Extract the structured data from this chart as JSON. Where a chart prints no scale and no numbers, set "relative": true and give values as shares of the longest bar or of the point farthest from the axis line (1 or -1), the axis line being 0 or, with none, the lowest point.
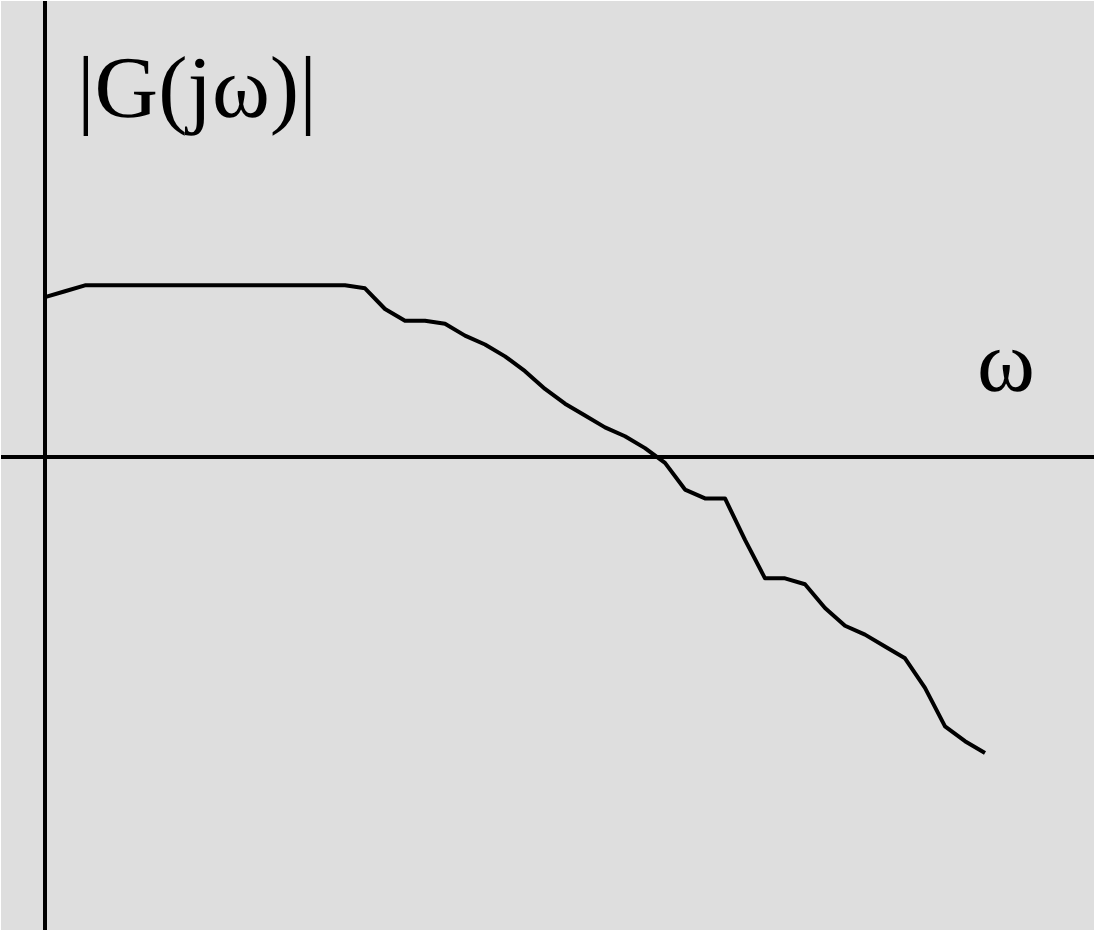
{
  "chart_data": {
    "type": "line",
    "relative": true,
    "xlabel": "ω",
    "ylabel": "|G(jω)|",
    "marker": "none",
    "line_style": "solid",
    "categories": [
      null,
      null,
      null,
      null,
      null,
      null,
      null,
      null,
      null,
      null,
      null,
      null,
      null,
      null,
      null,
      null,
      null,
      null,
      null,
      null,
      null,
      null,
      null,
      null,
      null,
      null,
      null,
      null,
      null,
      null,
      null,
      null,
      null,
      null,
      null,
      null,
      null,
      null,
      null,
      null,
      null,
      null,
      null,
      null,
      null,
      null,
      null,
      null
    ],
    "series": [
      {
        "color": "#000000",
        "values": [
          0.54,
          0.56,
          0.58,
          0.58,
          0.58,
          0.58,
          0.58,
          0.58,
          0.58,
          0.58,
          0.58,
          0.58,
          0.58,
          0.58,
          0.58,
          0.58,
          0.57,
          0.5,
          0.46,
          0.46,
          0.45,
          0.41,
          0.38,
          0.34,
          0.29,
          0.23,
          0.18,
          0.14,
          0.1,
          0.07,
          0.03,
          -0.02,
          -0.11,
          -0.14,
          -0.14,
          -0.28,
          -0.41,
          -0.41,
          -0.43,
          -0.51,
          -0.57,
          -0.6,
          -0.64,
          -0.68,
          -0.78,
          -0.91,
          -0.96,
          -1
        ]
      }
    ]
  }
}
